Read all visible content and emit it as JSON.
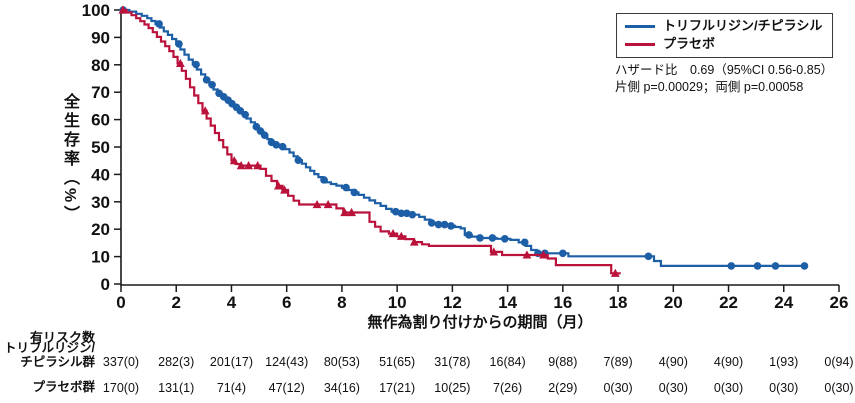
{
  "chart_data": {
    "type": "line",
    "subtype": "kaplan-meier-step-curves",
    "title": "",
    "xlabel": "無作為割り付けからの期間（月）",
    "ylabel": "全生存率（%）",
    "xlim": [
      0,
      26
    ],
    "ylim": [
      0,
      100
    ],
    "xticks": [
      0,
      2,
      4,
      6,
      8,
      10,
      12,
      14,
      16,
      18,
      20,
      22,
      24,
      26
    ],
    "yticks": [
      0,
      10,
      20,
      30,
      40,
      50,
      60,
      70,
      80,
      90,
      100
    ],
    "grid": false,
    "legend_position": "top-right",
    "axis_color": "#1a1a1a",
    "series": [
      {
        "name": "トリフルリジン/チピラシル",
        "color": "#1d5fa6",
        "marker": "circle",
        "steps": [
          [
            0,
            100
          ],
          [
            0.3,
            99.4
          ],
          [
            0.55,
            98.6
          ],
          [
            0.75,
            97.9
          ],
          [
            0.95,
            97.0
          ],
          [
            1.1,
            96.0
          ],
          [
            1.25,
            94.9
          ],
          [
            1.4,
            93.6
          ],
          [
            1.55,
            92.2
          ],
          [
            1.7,
            90.9
          ],
          [
            1.85,
            89.4
          ],
          [
            2.0,
            87.6
          ],
          [
            2.15,
            85.6
          ],
          [
            2.3,
            83.7
          ],
          [
            2.45,
            81.9
          ],
          [
            2.6,
            80.1
          ],
          [
            2.75,
            78.3
          ],
          [
            2.9,
            76.5
          ],
          [
            3.05,
            74.5
          ],
          [
            3.2,
            72.7
          ],
          [
            3.35,
            71.0
          ],
          [
            3.5,
            69.6
          ],
          [
            3.65,
            68.3
          ],
          [
            3.8,
            67.1
          ],
          [
            3.95,
            65.8
          ],
          [
            4.1,
            64.5
          ],
          [
            4.25,
            63.2
          ],
          [
            4.4,
            61.8
          ],
          [
            4.55,
            60.4
          ],
          [
            4.7,
            59.0
          ],
          [
            4.85,
            57.4
          ],
          [
            5.0,
            55.8
          ],
          [
            5.15,
            54.3
          ],
          [
            5.3,
            52.9
          ],
          [
            5.45,
            51.7
          ],
          [
            5.6,
            50.8
          ],
          [
            5.75,
            50.1
          ],
          [
            5.95,
            49.2
          ],
          [
            6.1,
            48.0
          ],
          [
            6.25,
            46.6
          ],
          [
            6.4,
            45.2
          ],
          [
            6.55,
            43.9
          ],
          [
            6.7,
            42.6
          ],
          [
            6.85,
            41.3
          ],
          [
            7.0,
            40.1
          ],
          [
            7.15,
            39.0
          ],
          [
            7.3,
            38.0
          ],
          [
            7.45,
            37.1
          ],
          [
            7.6,
            36.5
          ],
          [
            7.8,
            35.9
          ],
          [
            8.0,
            35.2
          ],
          [
            8.2,
            34.3
          ],
          [
            8.4,
            33.4
          ],
          [
            8.6,
            32.5
          ],
          [
            8.8,
            31.5
          ],
          [
            9.0,
            30.5
          ],
          [
            9.2,
            29.5
          ],
          [
            9.4,
            28.5
          ],
          [
            9.6,
            27.4
          ],
          [
            9.8,
            26.4
          ],
          [
            10.0,
            25.8
          ],
          [
            10.4,
            25.3
          ],
          [
            10.8,
            24.5
          ],
          [
            11.0,
            23.5
          ],
          [
            11.2,
            22.3
          ],
          [
            11.45,
            21.7
          ],
          [
            11.8,
            21.2
          ],
          [
            12.1,
            20.8
          ],
          [
            12.3,
            20.3
          ],
          [
            12.45,
            17.9
          ],
          [
            12.7,
            17.3
          ],
          [
            13.0,
            16.8
          ],
          [
            13.6,
            16.5
          ],
          [
            14.1,
            16.1
          ],
          [
            14.4,
            15.2
          ],
          [
            14.65,
            13.9
          ],
          [
            14.85,
            12.4
          ],
          [
            15.05,
            11.2
          ],
          [
            16.2,
            10.1
          ],
          [
            19.3,
            8.4
          ],
          [
            19.55,
            6.6
          ],
          [
            24.8,
            6.6
          ]
        ],
        "censor_times": [
          0.08,
          1.38,
          2.1,
          2.72,
          3.1,
          3.3,
          3.55,
          3.72,
          3.88,
          4.02,
          4.18,
          4.32,
          4.5,
          4.9,
          5.05,
          5.2,
          5.45,
          5.62,
          5.85,
          6.42,
          7.35,
          8.15,
          8.45,
          9.95,
          10.15,
          10.35,
          10.55,
          11.25,
          11.5,
          11.72,
          11.95,
          12.6,
          13.0,
          13.45,
          13.9,
          14.62,
          15.1,
          15.35,
          16.0,
          19.1,
          22.1,
          23.05,
          23.7,
          24.75
        ]
      },
      {
        "name": "プラセボ",
        "color": "#bb123c",
        "marker": "triangle",
        "steps": [
          [
            0,
            100
          ],
          [
            0.2,
            99.1
          ],
          [
            0.38,
            98.1
          ],
          [
            0.55,
            97.0
          ],
          [
            0.7,
            95.9
          ],
          [
            0.85,
            94.7
          ],
          [
            1.0,
            93.4
          ],
          [
            1.15,
            91.9
          ],
          [
            1.3,
            90.2
          ],
          [
            1.45,
            88.5
          ],
          [
            1.6,
            86.8
          ],
          [
            1.75,
            85.0
          ],
          [
            1.9,
            82.9
          ],
          [
            2.05,
            80.5
          ],
          [
            2.2,
            77.8
          ],
          [
            2.35,
            74.9
          ],
          [
            2.5,
            71.8
          ],
          [
            2.65,
            68.8
          ],
          [
            2.8,
            66.0
          ],
          [
            2.95,
            63.2
          ],
          [
            3.1,
            60.4
          ],
          [
            3.25,
            57.8
          ],
          [
            3.4,
            55.1
          ],
          [
            3.55,
            52.5
          ],
          [
            3.7,
            49.9
          ],
          [
            3.85,
            47.3
          ],
          [
            4.0,
            45.0
          ],
          [
            4.15,
            43.8
          ],
          [
            4.3,
            43.2
          ],
          [
            5.05,
            42.0
          ],
          [
            5.25,
            39.5
          ],
          [
            5.45,
            37.6
          ],
          [
            5.65,
            35.8
          ],
          [
            5.85,
            34.3
          ],
          [
            6.05,
            32.2
          ],
          [
            6.25,
            30.4
          ],
          [
            6.45,
            29.0
          ],
          [
            7.8,
            27.6
          ],
          [
            8.05,
            26.1
          ],
          [
            9.0,
            22.7
          ],
          [
            9.2,
            20.9
          ],
          [
            9.4,
            19.2
          ],
          [
            9.7,
            18.4
          ],
          [
            10.0,
            17.4
          ],
          [
            10.3,
            16.4
          ],
          [
            10.6,
            15.3
          ],
          [
            10.9,
            14.5
          ],
          [
            11.15,
            13.9
          ],
          [
            13.4,
            11.7
          ],
          [
            13.8,
            10.6
          ],
          [
            15.45,
            9.3
          ],
          [
            15.75,
            6.9
          ],
          [
            17.75,
            3.9
          ],
          [
            18.1,
            3.9
          ]
        ],
        "censor_times": [
          0.07,
          2.15,
          3.05,
          4.1,
          4.35,
          4.62,
          4.95,
          5.7,
          5.92,
          7.1,
          7.5,
          8.1,
          8.35,
          9.85,
          10.15,
          10.62,
          13.5,
          14.7,
          15.3,
          17.9
        ]
      }
    ],
    "annotations": [
      "ハザード比　0.69（95%CI 0.56-0.85）",
      "片側 p=0.00029；両側 p=0.00058"
    ],
    "hazard_ratio": {
      "value": 0.69,
      "ci95": "0.56-0.85",
      "p_one_sided": 0.00029,
      "p_two_sided": 0.00058
    },
    "risk_table": {
      "title": "有リスク数",
      "months": [
        0,
        2,
        4,
        6,
        8,
        10,
        12,
        14,
        16,
        18,
        20,
        22,
        24,
        26
      ],
      "rows": [
        {
          "label_lines": [
            "トリフルリジン/",
            "チピラシル群"
          ],
          "values": [
            "337(0)",
            "282(3)",
            "201(17)",
            "124(43)",
            "80(53)",
            "51(65)",
            "31(78)",
            "16(84)",
            "9(88)",
            "7(89)",
            "4(90)",
            "4(90)",
            "1(93)",
            "0(94)"
          ]
        },
        {
          "label_lines": [
            "プラセボ群"
          ],
          "values": [
            "170(0)",
            "131(1)",
            "71(4)",
            "47(12)",
            "34(16)",
            "17(21)",
            "10(25)",
            "7(26)",
            "2(29)",
            "0(30)",
            "0(30)",
            "0(30)",
            "0(30)",
            "0(30)"
          ]
        }
      ]
    }
  }
}
